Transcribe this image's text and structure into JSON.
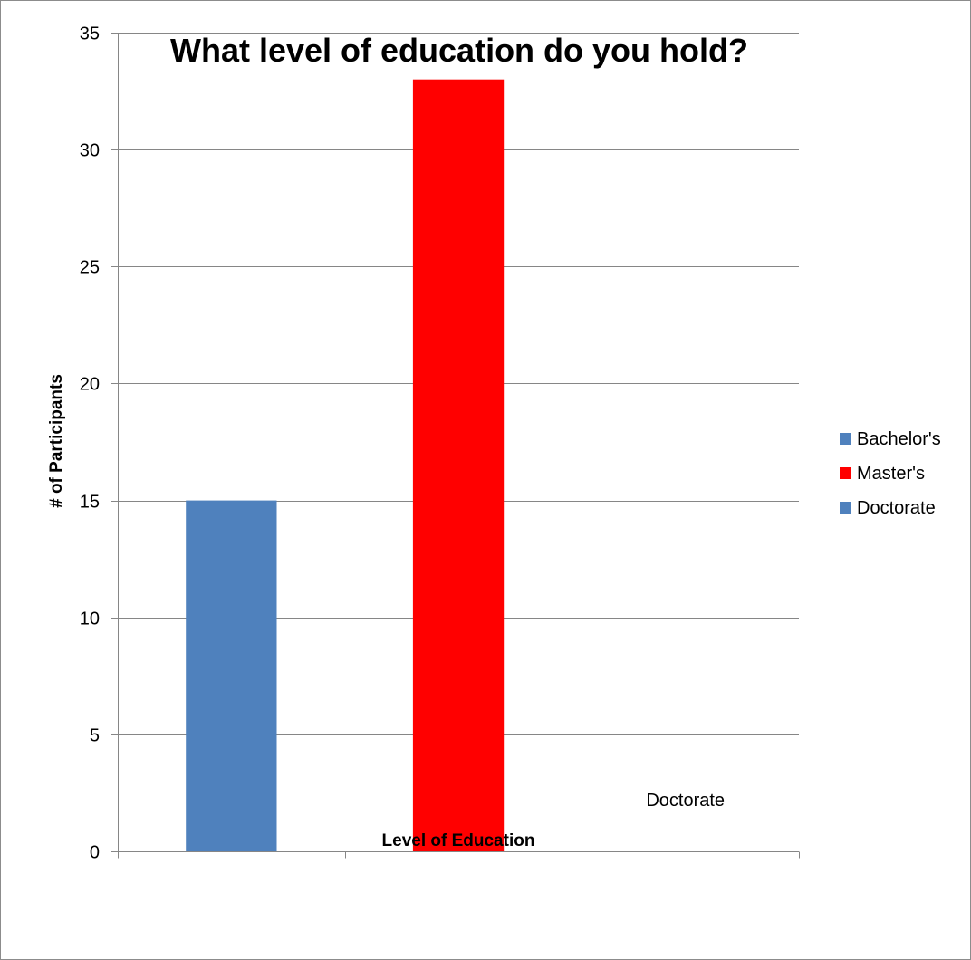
{
  "chart_data": {
    "type": "bar",
    "title": "What level of education do you hold?",
    "xlabel": "Level of Education",
    "ylabel": "# of Participants",
    "categories": [
      "Bachelor's",
      "Master's",
      "Doctorate"
    ],
    "values": [
      15,
      33,
      0
    ],
    "colors": [
      "#4f81bd",
      "#ff0000",
      "#4f81bd"
    ],
    "ylim": [
      0,
      35
    ],
    "yticks": [
      0,
      5,
      10,
      15,
      20,
      25,
      30,
      35
    ],
    "grid": true,
    "legend": {
      "placement": "right",
      "entries": [
        {
          "label": "Bachelor's",
          "color": "#4f81bd"
        },
        {
          "label": "Master's",
          "color": "#ff0000"
        },
        {
          "label": "Doctorate",
          "color": "#4f81bd"
        }
      ]
    }
  }
}
